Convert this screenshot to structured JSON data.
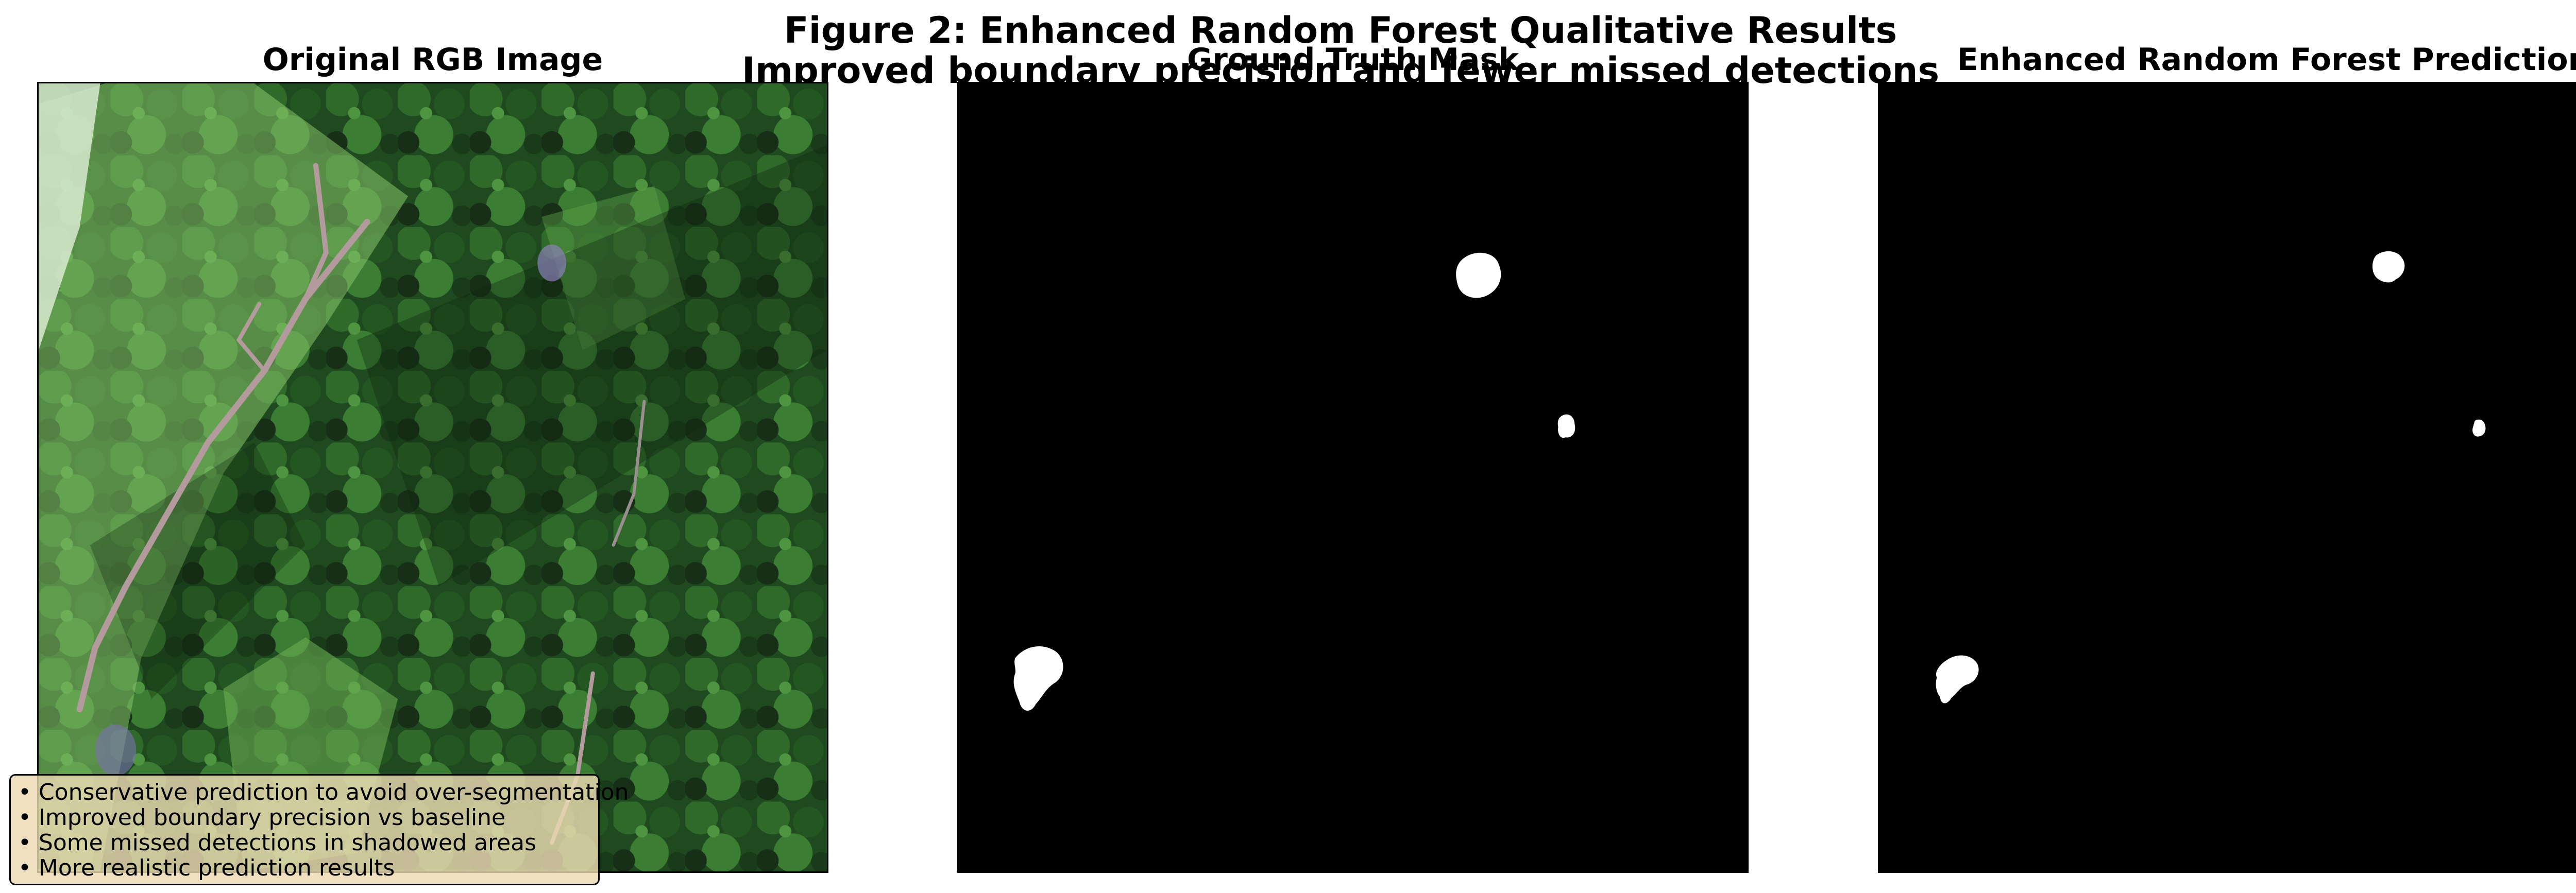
{
  "figure": {
    "title_line1": "Figure 2: Enhanced Random Forest Qualitative Results",
    "title_line2": "Improved boundary precision and fewer missed detections"
  },
  "panels": [
    {
      "title": "Original RGB Image",
      "content": "aerial-rgb-photo"
    },
    {
      "title": "Ground Truth Mask",
      "content": "binary-mask",
      "foreground": "#ffffff",
      "background": "#000000"
    },
    {
      "title": "Enhanced Random Forest Prediction",
      "content": "binary-mask",
      "foreground": "#ffffff",
      "background": "#000000"
    }
  ],
  "notes": [
    "• Conservative prediction to avoid over-segmentation",
    "• Improved boundary precision vs baseline",
    "• Some missed detections in shadowed areas",
    "• More realistic prediction results"
  ],
  "colors": {
    "forest_dark": "#143515",
    "forest_mid": "#2f6a2a",
    "clearing": "#86c46a",
    "path": "#b39a9c",
    "note_box": "#ecdab2"
  }
}
